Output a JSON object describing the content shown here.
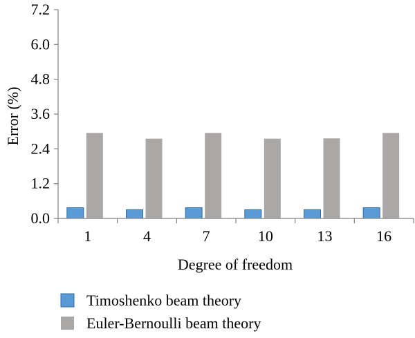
{
  "chart_data": {
    "type": "bar",
    "categories": [
      "1",
      "4",
      "7",
      "10",
      "13",
      "16"
    ],
    "series": [
      {
        "name": "Timoshenko beam theory",
        "values": [
          0.37,
          0.3,
          0.37,
          0.3,
          0.3,
          0.37
        ],
        "color": "#5b9bd5"
      },
      {
        "name": "Euler-Bernoulli beam theory",
        "values": [
          2.95,
          2.75,
          2.95,
          2.75,
          2.76,
          2.95
        ],
        "color": "#aaa7a7"
      }
    ],
    "xlabel": "Degree of freedom",
    "ylabel": "Error (%)",
    "ylim": [
      0,
      7.2
    ],
    "yticks": [
      "0.0",
      "1.2",
      "2.4",
      "3.6",
      "4.8",
      "6.0",
      "7.2"
    ],
    "grid": false,
    "legend_position": "bottom"
  }
}
